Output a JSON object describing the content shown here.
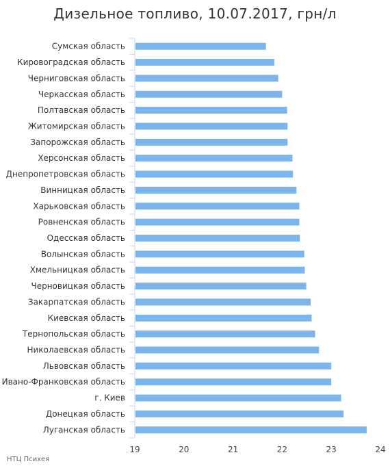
{
  "chart_data": {
    "type": "bar",
    "orientation": "horizontal",
    "title": "Дизельное топливо, 10.07.2017, грн/л",
    "xlabel": "",
    "ylabel": "",
    "xlim": [
      19,
      24
    ],
    "x_ticks": [
      19,
      20,
      21,
      22,
      23,
      24
    ],
    "grid": false,
    "legend": "none",
    "bar_color": "#7cb5ec",
    "categories": [
      "Сумская область",
      "Кировоградская область",
      "Черниговская область",
      "Черкасская область",
      "Полтавская область",
      "Житомирская область",
      "Запорожская область",
      "Херсонская область",
      "Днепропетровская область",
      "Винницкая область",
      "Харьковская область",
      "Ровненская область",
      "Одесская область",
      "Волынская область",
      "Хмельницкая область",
      "Черновицкая область",
      "Закарпатская область",
      "Киевская область",
      "Тернопольская область",
      "Николаевская область",
      "Львовская область",
      "Ивано-Франковская область",
      "г. Киев",
      "Донецкая область",
      "Луганская область"
    ],
    "values": [
      21.67,
      21.84,
      21.92,
      22.0,
      22.1,
      22.11,
      22.11,
      22.21,
      22.22,
      22.29,
      22.35,
      22.35,
      22.36,
      22.45,
      22.46,
      22.49,
      22.58,
      22.6,
      22.67,
      22.75,
      23.0,
      23.0,
      23.2,
      23.25,
      23.72
    ]
  },
  "source": "НТЦ Психея"
}
